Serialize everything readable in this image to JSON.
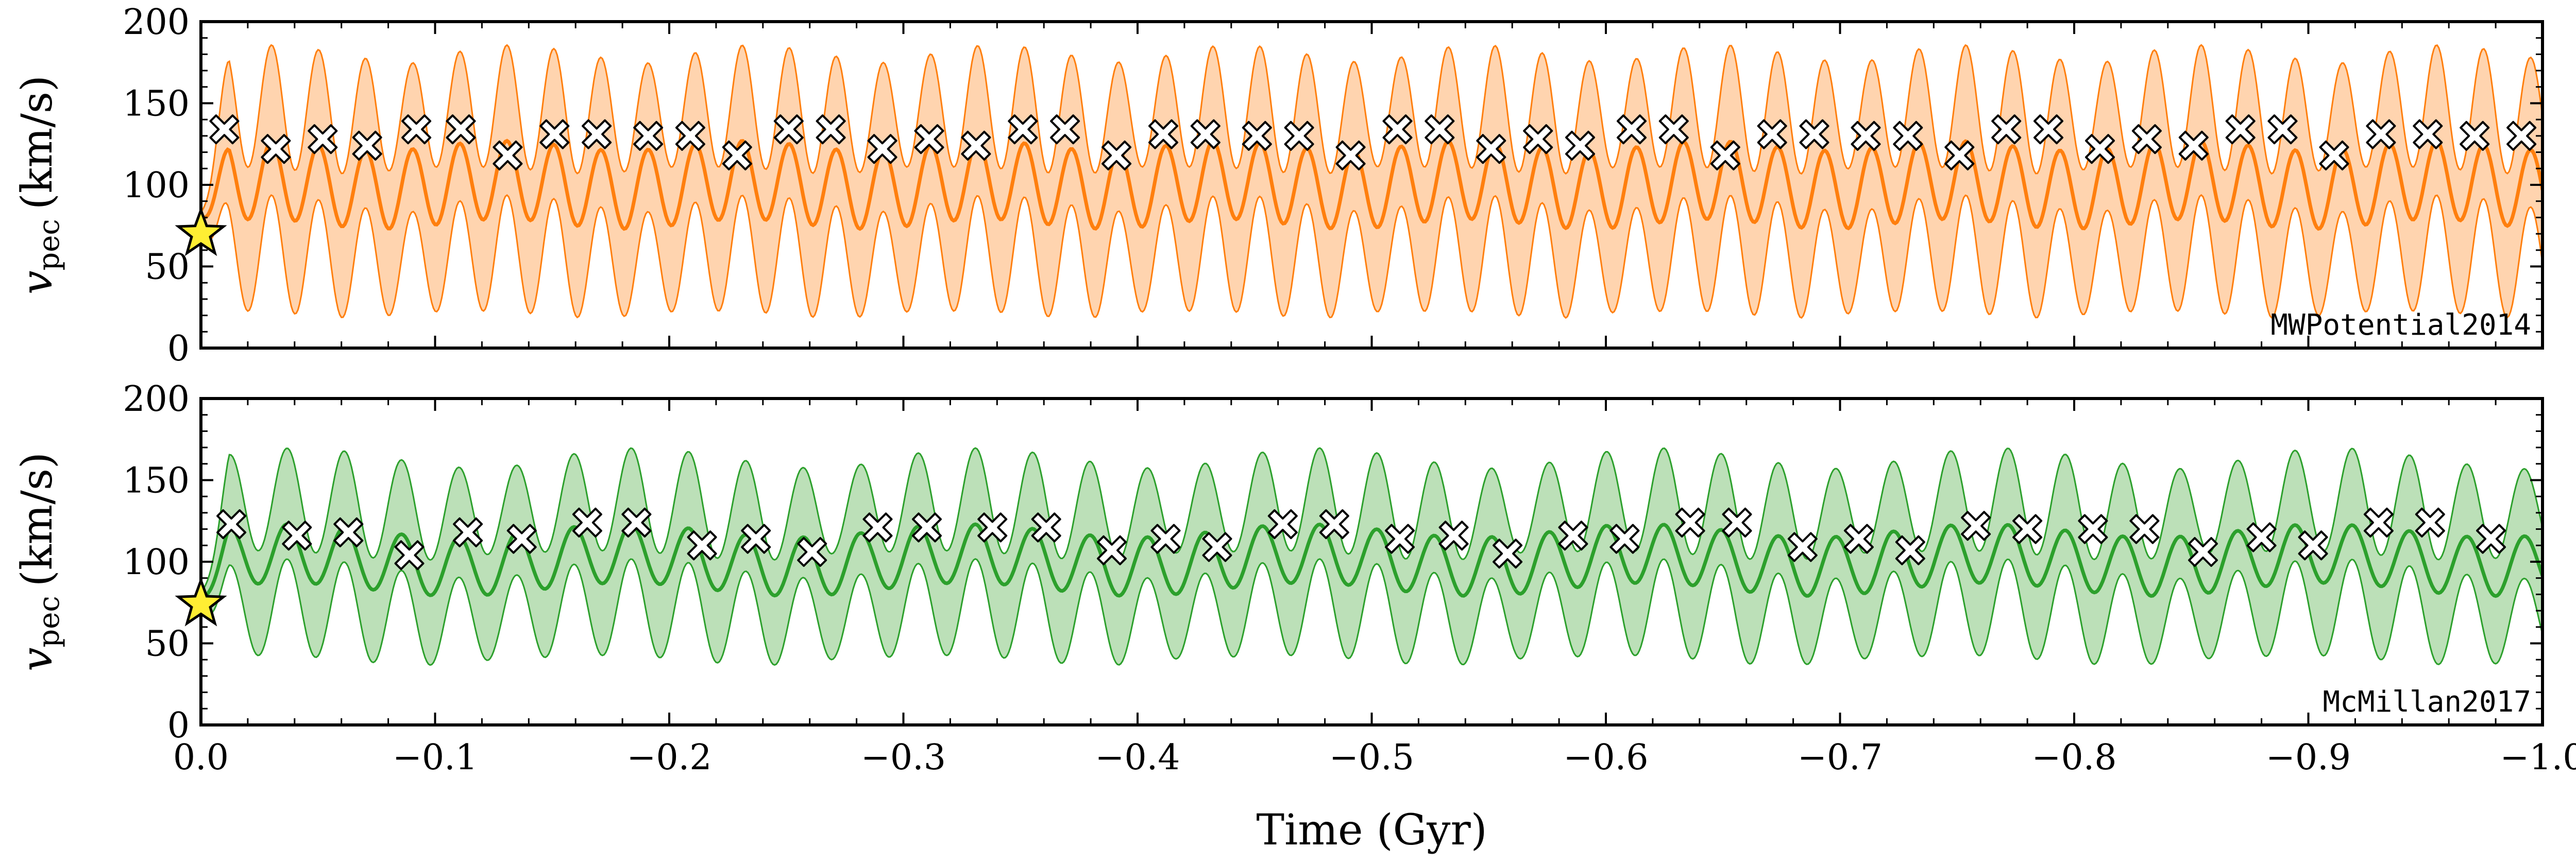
{
  "chart_data": [
    {
      "type": "line",
      "panel_label": "MWPotential2014",
      "ylabel": "v_pec (km/s)",
      "ylabel_main": "v",
      "ylabel_sub": "pec",
      "ylabel_unit": "(km/s)",
      "xlim": [
        0.0,
        -1.0
      ],
      "ylim": [
        0,
        200
      ],
      "ytick_values": [
        0,
        50,
        100,
        150,
        200
      ],
      "ytick_labels": [
        "0",
        "50",
        "100",
        "150",
        "200"
      ],
      "color": "#ff7f0e",
      "fill_color": "#ffcfa6",
      "median": {
        "mean": 100,
        "amp1": 24,
        "amp2": 3,
        "period1": 0.0201,
        "period2": 0.103,
        "start": 80
      },
      "band": {
        "upper_offset": 42,
        "lower_offset": 42,
        "upper_amp_extra": 14,
        "lower_amp_extra": 12,
        "mod_period": 0.103
      },
      "star": {
        "x": 0.0,
        "y": 70
      },
      "markers": {
        "x": [
          -0.01,
          -0.032,
          -0.052,
          -0.071,
          -0.092,
          -0.111,
          -0.131,
          -0.151,
          -0.169,
          -0.191,
          -0.209,
          -0.229,
          -0.251,
          -0.269,
          -0.291,
          -0.311,
          -0.331,
          -0.351,
          -0.369,
          -0.391,
          -0.411,
          -0.429,
          -0.451,
          -0.469,
          -0.491,
          -0.511,
          -0.529,
          -0.551,
          -0.571,
          -0.589,
          -0.611,
          -0.629,
          -0.651,
          -0.671,
          -0.689,
          -0.711,
          -0.729,
          -0.751,
          -0.771,
          -0.789,
          -0.811,
          -0.831,
          -0.851,
          -0.871,
          -0.889,
          -0.911,
          -0.931,
          -0.951,
          -0.971,
          -0.991
        ],
        "y": [
          134,
          122,
          128,
          124,
          134,
          134,
          118,
          131,
          131,
          130,
          130,
          118,
          134,
          134,
          122,
          128,
          124,
          134,
          134,
          118,
          131,
          131,
          130,
          130,
          118,
          134,
          134,
          122,
          128,
          124,
          134,
          134,
          118,
          131,
          131,
          130,
          130,
          118,
          134,
          134,
          122,
          128,
          124,
          134,
          134,
          118,
          131,
          131,
          130,
          130
        ]
      }
    },
    {
      "type": "line",
      "panel_label": "McMillan2017",
      "ylabel": "v_pec (km/s)",
      "ylabel_main": "v",
      "ylabel_sub": "pec",
      "ylabel_unit": "(km/s)",
      "xlim": [
        0.0,
        -1.0
      ],
      "ylim": [
        0,
        200
      ],
      "ytick_values": [
        0,
        50,
        100,
        150,
        200
      ],
      "ytick_labels": [
        "0",
        "50",
        "100",
        "150",
        "200"
      ],
      "xtick_values": [
        0.0,
        -0.1,
        -0.2,
        -0.3,
        -0.4,
        -0.5,
        -0.6,
        -0.7,
        -0.8,
        -0.9,
        -1.0
      ],
      "xtick_labels": [
        "0.0",
        "−0.1",
        "−0.2",
        "−0.3",
        "−0.4",
        "−0.5",
        "−0.6",
        "−0.7",
        "−0.8",
        "−0.9",
        "−1.0"
      ],
      "xlabel": "Time (Gyr)",
      "color": "#2ca02c",
      "fill_color": "#b5ddb0",
      "median": {
        "mean": 101,
        "amp1": 18,
        "amp2": 4,
        "period1": 0.0245,
        "period2": 0.145,
        "start": 78
      },
      "band": {
        "upper_offset": 30,
        "lower_offset": 30,
        "upper_amp_extra": 14,
        "lower_amp_extra": 12,
        "mod_period": 0.145
      },
      "star": {
        "x": 0.0,
        "y": 74
      },
      "markers": {
        "x": [
          -0.013,
          -0.041,
          -0.063,
          -0.089,
          -0.114,
          -0.137,
          -0.165,
          -0.186,
          -0.214,
          -0.237,
          -0.261,
          -0.289,
          -0.31,
          -0.338,
          -0.361,
          -0.389,
          -0.412,
          -0.434,
          -0.462,
          -0.484,
          -0.512,
          -0.535,
          -0.558,
          -0.586,
          -0.608,
          -0.636,
          -0.656,
          -0.684,
          -0.708,
          -0.73,
          -0.758,
          -0.78,
          -0.808,
          -0.83,
          -0.855,
          -0.88,
          -0.902,
          -0.93,
          -0.952,
          -0.978
        ],
        "y": [
          123,
          116,
          118,
          104,
          118,
          114,
          124,
          124,
          110,
          114,
          106,
          121,
          121,
          121,
          121,
          107,
          114,
          109,
          123,
          123,
          114,
          116,
          105,
          116,
          114,
          124,
          124,
          109,
          114,
          107,
          122,
          120,
          120,
          120,
          106,
          115,
          110,
          124,
          124,
          114
        ]
      }
    }
  ]
}
